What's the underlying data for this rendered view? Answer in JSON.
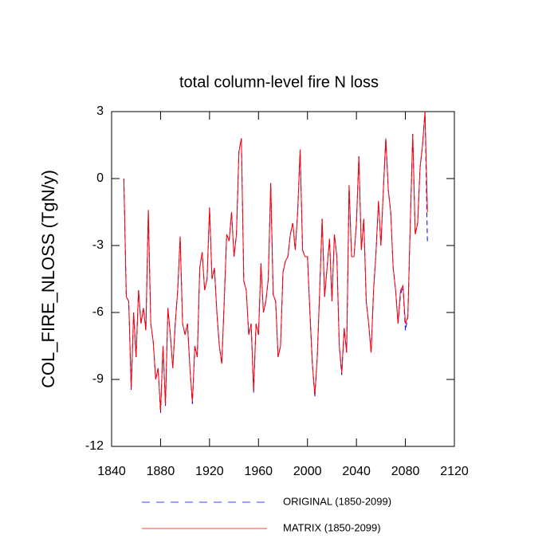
{
  "chart_data": {
    "type": "line",
    "title": "total column-level fire N loss",
    "y_label": "COL_FIRE_NLOSS  (TgN/y)",
    "xlim": [
      1840,
      2120
    ],
    "xticks": [
      1840,
      1880,
      1920,
      1960,
      2000,
      2040,
      2080,
      2120
    ],
    "ylim": [
      -12,
      3
    ],
    "yticks": [
      -12,
      -9,
      -6,
      -3,
      0,
      3
    ],
    "x": [
      1850,
      1852,
      1854,
      1856,
      1858,
      1860,
      1862,
      1864,
      1866,
      1868,
      1870,
      1872,
      1874,
      1876,
      1878,
      1880,
      1882,
      1884,
      1886,
      1888,
      1890,
      1892,
      1894,
      1896,
      1898,
      1900,
      1902,
      1904,
      1906,
      1908,
      1910,
      1912,
      1914,
      1916,
      1918,
      1920,
      1922,
      1924,
      1926,
      1928,
      1930,
      1932,
      1934,
      1936,
      1938,
      1940,
      1942,
      1944,
      1946,
      1948,
      1950,
      1952,
      1954,
      1956,
      1958,
      1960,
      1962,
      1964,
      1966,
      1968,
      1970,
      1972,
      1974,
      1976,
      1978,
      1980,
      1982,
      1984,
      1986,
      1988,
      1990,
      1992,
      1994,
      1996,
      1998,
      2000,
      2002,
      2004,
      2006,
      2008,
      2010,
      2012,
      2014,
      2016,
      2018,
      2020,
      2022,
      2024,
      2026,
      2028,
      2030,
      2032,
      2034,
      2036,
      2038,
      2040,
      2042,
      2044,
      2046,
      2048,
      2050,
      2052,
      2054,
      2056,
      2058,
      2060,
      2062,
      2064,
      2066,
      2068,
      2070,
      2072,
      2074,
      2076,
      2078,
      2080,
      2082,
      2084,
      2086,
      2088,
      2090,
      2092,
      2094,
      2096,
      2098
    ],
    "series": [
      {
        "name": "ORIGINAL (1850-2099)",
        "color": "#0000ff",
        "dash": true,
        "values": [
          0,
          -5.3,
          -5.5,
          -9.5,
          -6,
          -8,
          -5,
          -6.5,
          -5.8,
          -6.8,
          -1.4,
          -6.5,
          -7.3,
          -9,
          -8.5,
          -10.5,
          -7.5,
          -10.2,
          -5.8,
          -7,
          -8.5,
          -6.5,
          -5,
          -2.6,
          -6.5,
          -7,
          -6.5,
          -8.5,
          -10.1,
          -7.5,
          -8,
          -4,
          -3.3,
          -5,
          -4.5,
          -1.3,
          -4.5,
          -4,
          -6,
          -7.5,
          -8.3,
          -5.5,
          -2.5,
          -2.8,
          -1.5,
          -3.5,
          -2.5,
          1.2,
          1.8,
          -4.6,
          -5,
          -7,
          -6.5,
          -9.6,
          -6.5,
          -7,
          -3.8,
          -6,
          -5.5,
          -4.5,
          -0.2,
          -5.2,
          -5.5,
          -8,
          -7.5,
          -4.2,
          -3.7,
          -3.5,
          -2.5,
          -2,
          -3.2,
          -1.5,
          1.3,
          -3.2,
          -3.5,
          -3.5,
          -6,
          -8.3,
          -9.8,
          -8,
          -5,
          -1.8,
          -5.3,
          -4,
          -2.7,
          -5.5,
          -2.5,
          -3.5,
          -7.5,
          -8.8,
          -6.7,
          -7.8,
          -0.3,
          -3.5,
          -3.5,
          -2,
          1,
          -3.2,
          -1.8,
          -5.5,
          -6.5,
          -7.8,
          -5,
          -3.3,
          -1,
          -3,
          -0.5,
          1.8,
          -0.5,
          -1.5,
          -4,
          -5,
          -6.5,
          -5.2,
          -4.8,
          -6.8,
          -6.2,
          -2,
          2,
          -2.5,
          -2,
          0.5,
          1.5,
          3,
          -2.9
        ]
      },
      {
        "name": "MATRIX (1850-2099)",
        "color": "#ff0000",
        "dash": false,
        "values": [
          0,
          -5.3,
          -5.5,
          -9.4,
          -6,
          -8,
          -5,
          -6.5,
          -5.8,
          -6.8,
          -1.4,
          -6.5,
          -7.3,
          -9,
          -8.5,
          -10.4,
          -7.5,
          -10.1,
          -5.8,
          -7,
          -8.5,
          -6.5,
          -5,
          -2.6,
          -6.5,
          -7,
          -6.5,
          -8.5,
          -10,
          -7.5,
          -8,
          -4,
          -3.3,
          -5,
          -4.5,
          -1.3,
          -4.5,
          -4,
          -6,
          -7.5,
          -8.3,
          -5.5,
          -2.5,
          -2.8,
          -1.5,
          -3.5,
          -2.5,
          1.2,
          1.8,
          -4.6,
          -5,
          -7,
          -6.5,
          -9.5,
          -6.5,
          -7,
          -3.8,
          -6,
          -5.5,
          -4.5,
          -0.2,
          -5.2,
          -5.5,
          -8,
          -7.5,
          -4.2,
          -3.7,
          -3.5,
          -2.5,
          -2,
          -3.2,
          -1.5,
          1.3,
          -3.2,
          -3.5,
          -3.5,
          -6,
          -8.3,
          -9.7,
          -8,
          -5,
          -1.8,
          -5.3,
          -4,
          -2.7,
          -5.5,
          -2.5,
          -3.5,
          -7.5,
          -8.7,
          -6.7,
          -7.8,
          -0.3,
          -3.5,
          -3.5,
          -2,
          1,
          -3.2,
          -1.8,
          -5.5,
          -6.5,
          -7.8,
          -5,
          -3.3,
          -1,
          -3,
          -0.5,
          1.8,
          -0.5,
          -1.5,
          -4,
          -5,
          -6.5,
          -5,
          -4.8,
          -6.5,
          -6.2,
          -2,
          2,
          -2.5,
          -2,
          0.5,
          1.5,
          3,
          -1.5
        ]
      }
    ]
  }
}
